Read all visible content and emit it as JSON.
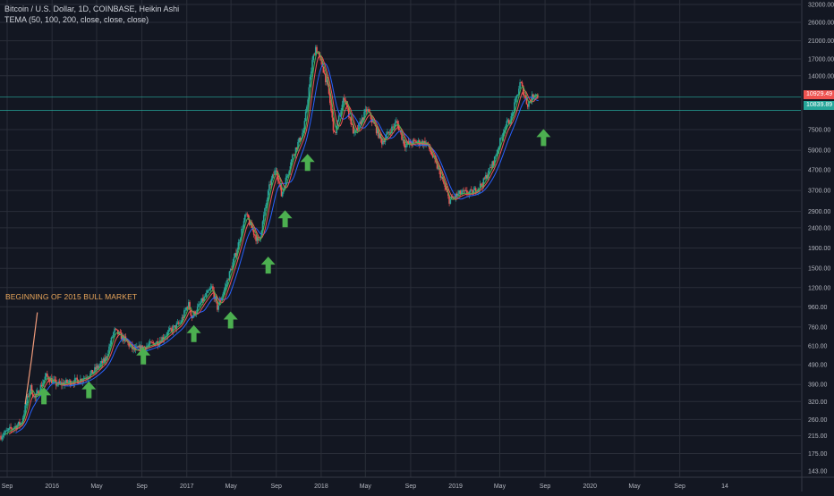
{
  "legend": {
    "title": "Bitcoin / U.S. Dollar, 1D, COINBASE, Heikin Ashi",
    "indicator": "TEMA (50, 100, 200, close, close, close)"
  },
  "annotation": "BEGINNING OF 2015 BULL MARKET",
  "price_tags": {
    "upper": {
      "label": "10929.49",
      "color": "#ef5350"
    },
    "lower": {
      "label": "10839.89",
      "color": "#26a69a"
    }
  },
  "colors": {
    "background": "#131722",
    "grid": "#2a2e39",
    "arrow": "#4caf50",
    "price_line": "#26a69a",
    "up_candle": "#26a69a",
    "down_candle": "#ef5350",
    "tema_fast": "#4caf50",
    "tema_mid": "#ef5350",
    "tema_slow": "#2962ff",
    "annotation": "#e8a55a"
  },
  "chart_data": {
    "type": "line",
    "title": "Bitcoin / U.S. Dollar, 1D, COINBASE, Heikin Ashi",
    "log_scale": true,
    "ylim": [
      143,
      32000
    ],
    "y_ticks": [
      "32000.00",
      "26000.00",
      "21000.00",
      "17000.00",
      "14000.00",
      "10929.49",
      "10839.89",
      "7500.00",
      "5900.00",
      "4700.00",
      "3700.00",
      "2900.00",
      "2400.00",
      "1900.00",
      "1500.00",
      "1200.00",
      "960.00",
      "760.00",
      "610.00",
      "490.00",
      "390.00",
      "320.00",
      "260.00",
      "215.00",
      "175.00",
      "143.00"
    ],
    "x_ticks": [
      "Sep",
      "2016",
      "May",
      "Sep",
      "2017",
      "May",
      "Sep",
      "2018",
      "May",
      "Sep",
      "2019",
      "May",
      "Sep",
      "2020",
      "May",
      "Sep",
      "14"
    ],
    "grid": true,
    "series": [
      {
        "type": "candle",
        "points": [
          [
            "2015-08-15",
            215
          ],
          [
            "2015-09-15",
            235
          ],
          [
            "2015-10-10",
            250
          ],
          [
            "2015-11-03",
            380
          ],
          [
            "2015-11-15",
            330
          ],
          [
            "2015-12-15",
            430
          ],
          [
            "2016-01-15",
            390
          ],
          [
            "2016-02-15",
            400
          ],
          [
            "2016-03-15",
            410
          ],
          [
            "2016-04-15",
            440
          ],
          [
            "2016-05-25",
            520
          ],
          [
            "2016-06-18",
            730
          ],
          [
            "2016-07-15",
            660
          ],
          [
            "2016-08-10",
            580
          ],
          [
            "2016-09-15",
            610
          ],
          [
            "2016-10-15",
            640
          ],
          [
            "2016-11-15",
            720
          ],
          [
            "2016-12-15",
            800
          ],
          [
            "2017-01-05",
            1000
          ],
          [
            "2017-01-15",
            850
          ],
          [
            "2017-02-15",
            1050
          ],
          [
            "2017-03-10",
            1200
          ],
          [
            "2017-03-25",
            950
          ],
          [
            "2017-04-15",
            1200
          ],
          [
            "2017-05-15",
            1800
          ],
          [
            "2017-06-10",
            2800
          ],
          [
            "2017-07-15",
            2000
          ],
          [
            "2017-08-15",
            4000
          ],
          [
            "2017-09-01",
            4800
          ],
          [
            "2017-09-15",
            3500
          ],
          [
            "2017-10-15",
            5500
          ],
          [
            "2017-11-15",
            7500
          ],
          [
            "2017-12-08",
            16500
          ],
          [
            "2017-12-17",
            19500
          ],
          [
            "2018-01-05",
            15500
          ],
          [
            "2018-01-20",
            12000
          ],
          [
            "2018-02-06",
            7000
          ],
          [
            "2018-03-05",
            11000
          ],
          [
            "2018-04-01",
            7000
          ],
          [
            "2018-05-05",
            9500
          ],
          [
            "2018-06-15",
            6500
          ],
          [
            "2018-07-25",
            8200
          ],
          [
            "2018-08-15",
            6300
          ],
          [
            "2018-09-15",
            6500
          ],
          [
            "2018-10-15",
            6400
          ],
          [
            "2018-11-20",
            4500
          ],
          [
            "2018-12-15",
            3300
          ],
          [
            "2019-01-15",
            3600
          ],
          [
            "2019-02-15",
            3600
          ],
          [
            "2019-03-15",
            4000
          ],
          [
            "2019-04-15",
            5200
          ],
          [
            "2019-05-15",
            7800
          ],
          [
            "2019-06-01",
            8500
          ],
          [
            "2019-06-26",
            13000
          ],
          [
            "2019-07-15",
            10000
          ],
          [
            "2019-08-05",
            11500
          ],
          [
            "2019-08-14",
            10900
          ]
        ]
      },
      {
        "name": "TEMA 50",
        "color": "#4caf50",
        "role": "fast"
      },
      {
        "name": "TEMA 100",
        "color": "#ef5350",
        "role": "mid"
      },
      {
        "name": "TEMA 200",
        "color": "#2962ff",
        "role": "slow"
      }
    ],
    "markers": [
      {
        "type": "up-arrow",
        "date": "2015-12-10",
        "price": 340
      },
      {
        "type": "up-arrow",
        "date": "2016-04-10",
        "price": 365
      },
      {
        "type": "up-arrow",
        "date": "2016-09-05",
        "price": 540
      },
      {
        "type": "up-arrow",
        "date": "2017-01-20",
        "price": 700
      },
      {
        "type": "up-arrow",
        "date": "2017-04-30",
        "price": 820
      },
      {
        "type": "up-arrow",
        "date": "2017-08-10",
        "price": 1550
      },
      {
        "type": "up-arrow",
        "date": "2017-09-25",
        "price": 2650
      },
      {
        "type": "up-arrow",
        "date": "2017-11-25",
        "price": 5100
      },
      {
        "type": "up-arrow",
        "date": "2019-08-28",
        "price": 6800
      }
    ],
    "horizontal_lines": [
      10929.49,
      10839.89
    ]
  }
}
